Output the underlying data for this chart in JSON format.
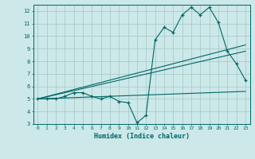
{
  "xlabel": "Humidex (Indice chaleur)",
  "ylabel": "",
  "bg_color": "#cce8e8",
  "grid_color": "#aacccc",
  "line_color": "#006666",
  "xlim": [
    -0.5,
    23.5
  ],
  "ylim": [
    3,
    12.5
  ],
  "yticks": [
    3,
    4,
    5,
    6,
    7,
    8,
    9,
    10,
    11,
    12
  ],
  "xticks": [
    0,
    1,
    2,
    3,
    4,
    5,
    6,
    7,
    8,
    9,
    10,
    11,
    12,
    13,
    14,
    15,
    16,
    17,
    18,
    19,
    20,
    21,
    22,
    23
  ],
  "main_x": [
    0,
    1,
    2,
    3,
    4,
    5,
    6,
    7,
    8,
    9,
    10,
    11,
    12,
    13,
    14,
    15,
    16,
    17,
    18,
    19,
    20,
    21,
    22,
    23
  ],
  "main_y": [
    5.0,
    5.0,
    5.0,
    5.2,
    5.5,
    5.5,
    5.2,
    5.0,
    5.2,
    4.8,
    4.7,
    3.1,
    3.7,
    9.7,
    10.7,
    10.3,
    11.7,
    12.3,
    11.7,
    12.3,
    11.1,
    8.8,
    7.8,
    6.5
  ],
  "line1_x": [
    0,
    23
  ],
  "line1_y": [
    5.0,
    5.6
  ],
  "line2_x": [
    0,
    23
  ],
  "line2_y": [
    5.0,
    8.8
  ],
  "line3_x": [
    0,
    23
  ],
  "line3_y": [
    5.0,
    9.3
  ]
}
